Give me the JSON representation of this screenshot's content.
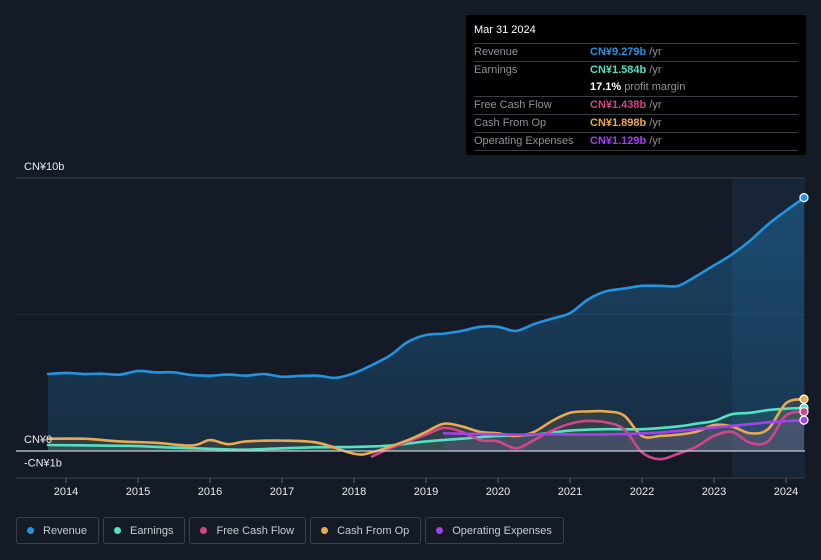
{
  "tooltip": {
    "date": "Mar 31 2024",
    "rows": [
      {
        "label": "Revenue",
        "value": "CN¥9.279b",
        "unit": "/yr",
        "color": "#2394df"
      },
      {
        "label": "Earnings",
        "value": "CN¥1.584b",
        "unit": "/yr",
        "color": "#52e1c3"
      },
      {
        "label": "",
        "value": "17.1%",
        "unit": "profit margin",
        "color": "#ffffff"
      },
      {
        "label": "Free Cash Flow",
        "value": "CN¥1.438b",
        "unit": "/yr",
        "color": "#d04688"
      },
      {
        "label": "Cash From Op",
        "value": "CN¥1.898b",
        "unit": "/yr",
        "color": "#e8a94f"
      },
      {
        "label": "Operating Expenses",
        "value": "CN¥1.129b",
        "unit": "/yr",
        "color": "#a143e8"
      }
    ]
  },
  "legend": [
    {
      "label": "Revenue",
      "color": "#2394df"
    },
    {
      "label": "Earnings",
      "color": "#52e1c3"
    },
    {
      "label": "Free Cash Flow",
      "color": "#d04688"
    },
    {
      "label": "Cash From Op",
      "color": "#e8a94f"
    },
    {
      "label": "Operating Expenses",
      "color": "#a143e8"
    }
  ],
  "chart_data": {
    "type": "line",
    "title": "",
    "xlabel": "",
    "ylabel": "",
    "y_unit": "CN¥ billions",
    "ylim": [
      -1,
      10
    ],
    "y_ticks": [
      {
        "value": 10,
        "label": "CN¥10b"
      },
      {
        "value": 0,
        "label": "CN¥0"
      },
      {
        "value": -1,
        "label": "-CN¥1b"
      }
    ],
    "x_ticks": [
      "2014",
      "2015",
      "2016",
      "2017",
      "2018",
      "2019",
      "2020",
      "2021",
      "2022",
      "2023",
      "2024"
    ],
    "xlim": [
      2013.75,
      2024.25
    ],
    "highlight_range": [
      2023.25,
      2024.25
    ],
    "grid": "horizontal",
    "series": [
      {
        "name": "Revenue",
        "color": "#2394df",
        "area": true,
        "x": [
          2013.75,
          2014.0,
          2014.25,
          2014.5,
          2014.75,
          2015.0,
          2015.25,
          2015.5,
          2015.75,
          2016.0,
          2016.25,
          2016.5,
          2016.75,
          2017.0,
          2017.25,
          2017.5,
          2017.75,
          2018.0,
          2018.25,
          2018.5,
          2018.75,
          2019.0,
          2019.25,
          2019.5,
          2019.75,
          2020.0,
          2020.25,
          2020.5,
          2020.75,
          2021.0,
          2021.25,
          2021.5,
          2021.75,
          2022.0,
          2022.25,
          2022.5,
          2022.75,
          2023.0,
          2023.25,
          2023.5,
          2023.75,
          2024.0,
          2024.25
        ],
        "values": [
          2.82,
          2.86,
          2.82,
          2.83,
          2.8,
          2.93,
          2.88,
          2.88,
          2.78,
          2.76,
          2.8,
          2.76,
          2.82,
          2.72,
          2.75,
          2.76,
          2.68,
          2.85,
          3.15,
          3.5,
          4.0,
          4.25,
          4.3,
          4.4,
          4.55,
          4.55,
          4.4,
          4.65,
          4.85,
          5.05,
          5.55,
          5.85,
          5.95,
          6.05,
          6.05,
          6.05,
          6.4,
          6.8,
          7.2,
          7.7,
          8.3,
          8.8,
          9.28
        ]
      },
      {
        "name": "Earnings",
        "color": "#52e1c3",
        "area": true,
        "x": [
          2013.75,
          2014.5,
          2015.0,
          2015.5,
          2016.0,
          2016.5,
          2017.0,
          2017.5,
          2018.0,
          2018.5,
          2019.0,
          2019.5,
          2020.0,
          2020.5,
          2021.0,
          2021.5,
          2022.0,
          2022.5,
          2022.75,
          2023.0,
          2023.25,
          2023.5,
          2023.75,
          2024.0,
          2024.25
        ],
        "values": [
          0.22,
          0.2,
          0.18,
          0.12,
          0.08,
          0.05,
          0.1,
          0.14,
          0.15,
          0.2,
          0.35,
          0.45,
          0.55,
          0.6,
          0.75,
          0.8,
          0.8,
          0.9,
          1.0,
          1.1,
          1.35,
          1.4,
          1.5,
          1.55,
          1.58
        ]
      },
      {
        "name": "Free Cash Flow",
        "color": "#d04688",
        "area": false,
        "x": [
          2018.25,
          2018.5,
          2018.75,
          2019.0,
          2019.25,
          2019.5,
          2019.75,
          2020.0,
          2020.25,
          2020.5,
          2020.75,
          2021.0,
          2021.25,
          2021.5,
          2021.75,
          2022.0,
          2022.25,
          2022.5,
          2022.75,
          2023.0,
          2023.25,
          2023.5,
          2023.75,
          2024.0,
          2024.25
        ],
        "values": [
          -0.2,
          0.1,
          0.35,
          0.6,
          0.85,
          0.7,
          0.4,
          0.35,
          0.1,
          0.4,
          0.75,
          1.0,
          1.1,
          1.05,
          0.8,
          -0.05,
          -0.3,
          -0.1,
          0.15,
          0.55,
          0.7,
          0.3,
          0.35,
          1.3,
          1.44
        ]
      },
      {
        "name": "Cash From Op",
        "color": "#e8a94f",
        "area": true,
        "x": [
          2013.75,
          2014.25,
          2014.75,
          2015.25,
          2015.75,
          2016.0,
          2016.25,
          2016.5,
          2017.0,
          2017.5,
          2018.0,
          2018.25,
          2018.75,
          2019.0,
          2019.25,
          2019.5,
          2019.75,
          2020.0,
          2020.25,
          2020.5,
          2020.75,
          2021.0,
          2021.25,
          2021.5,
          2021.75,
          2022.0,
          2022.25,
          2022.5,
          2022.75,
          2023.0,
          2023.25,
          2023.5,
          2023.75,
          2024.0,
          2024.25
        ],
        "values": [
          0.45,
          0.45,
          0.35,
          0.3,
          0.2,
          0.4,
          0.25,
          0.35,
          0.38,
          0.3,
          -0.1,
          -0.05,
          0.4,
          0.7,
          1.0,
          0.9,
          0.7,
          0.65,
          0.55,
          0.7,
          1.1,
          1.4,
          1.45,
          1.45,
          1.3,
          0.55,
          0.55,
          0.6,
          0.7,
          0.95,
          0.9,
          0.65,
          0.8,
          1.75,
          1.9
        ]
      },
      {
        "name": "Operating Expenses",
        "color": "#a143e8",
        "area": true,
        "x": [
          2019.25,
          2019.75,
          2020.25,
          2020.75,
          2021.25,
          2021.75,
          2022.25,
          2022.75,
          2023.25,
          2023.75,
          2024.25
        ],
        "values": [
          0.65,
          0.62,
          0.6,
          0.62,
          0.6,
          0.62,
          0.68,
          0.8,
          0.92,
          1.05,
          1.13
        ]
      }
    ]
  }
}
